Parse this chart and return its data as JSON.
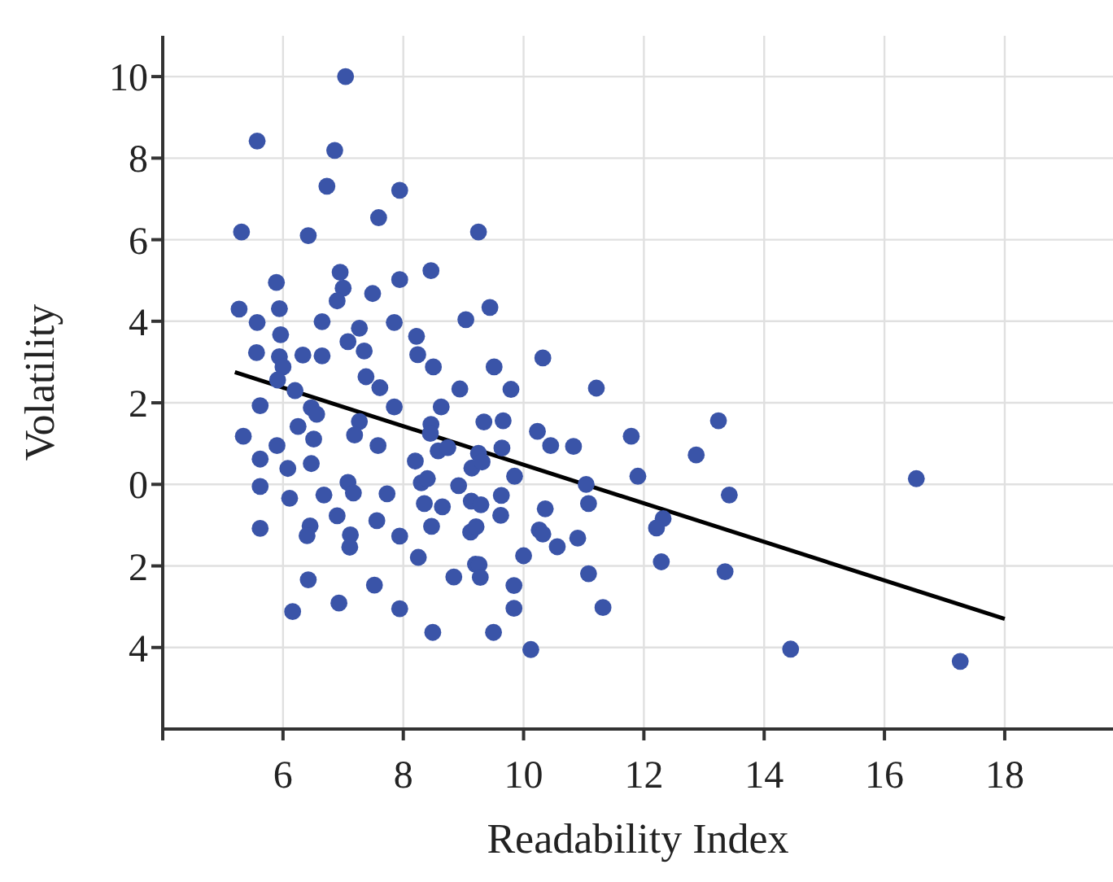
{
  "chart_data": {
    "type": "scatter",
    "xlabel": "Readability Index",
    "ylabel": "Volatility",
    "xlim": [
      4,
      19.8
    ],
    "ylim": [
      -6,
      11
    ],
    "xticks": [
      {
        "value": 4,
        "label": null
      },
      6,
      8,
      10,
      12,
      14,
      16,
      18
    ],
    "yticks": [
      10,
      8,
      6,
      4,
      2,
      0,
      {
        "value": -2,
        "label": "2"
      },
      {
        "value": -4,
        "label": "4"
      }
    ],
    "grid": true,
    "legend": false,
    "series": [
      {
        "marker": "circle",
        "color": "#3a54a8",
        "x": [
          7.04,
          5.57,
          6.86,
          6.73,
          7.94,
          7.59,
          5.31,
          6.42,
          9.25,
          6.95,
          7.0,
          6.9,
          7.49,
          5.89,
          7.94,
          8.46,
          5.27,
          5.94,
          5.57,
          6.65,
          7.85,
          9.04,
          5.96,
          7.27,
          7.08,
          8.22,
          5.56,
          5.94,
          6.33,
          6.65,
          7.35,
          8.24,
          6.0,
          8.5,
          5.91,
          7.38,
          7.61,
          8.94,
          6.2,
          9.44,
          9.51,
          10.32,
          9.79,
          11.21,
          5.62,
          6.47,
          6.56,
          7.85,
          8.63,
          5.34,
          6.25,
          7.27,
          7.19,
          6.51,
          7.58,
          5.9,
          8.46,
          8.45,
          8.58,
          8.74,
          5.62,
          6.08,
          6.47,
          8.2,
          9.14,
          8.3,
          8.4,
          8.92,
          5.62,
          6.68,
          7.08,
          7.17,
          7.73,
          6.11,
          9.13,
          8.35,
          8.65,
          6.9,
          7.56,
          5.62,
          6.45,
          6.4,
          8.47,
          7.12,
          7.94,
          7.11,
          9.12,
          8.25,
          8.84,
          6.42,
          7.52,
          9.2,
          6.16,
          6.93,
          7.94,
          8.49,
          9.34,
          9.66,
          10.23,
          10.45,
          10.83,
          11.79,
          13.24,
          12.87,
          9.64,
          9.25,
          9.31,
          9.85,
          11.9,
          11.04,
          13.42,
          9.29,
          9.63,
          9.62,
          11.08,
          10.36,
          9.21,
          10.26,
          10.32,
          10.9,
          10.56,
          10.0,
          12.32,
          12.21,
          9.26,
          9.28,
          12.29,
          11.08,
          13.35,
          9.84,
          9.84,
          11.32,
          9.5,
          10.12,
          16.53,
          14.44,
          17.26
        ],
        "values": [
          10.0,
          8.42,
          8.19,
          7.31,
          7.21,
          6.54,
          6.19,
          6.1,
          6.19,
          5.2,
          4.81,
          4.5,
          4.68,
          4.95,
          5.02,
          5.24,
          4.3,
          4.31,
          3.97,
          3.99,
          3.97,
          4.04,
          3.67,
          3.83,
          3.5,
          3.63,
          3.23,
          3.13,
          3.17,
          3.15,
          3.27,
          3.18,
          2.88,
          2.88,
          2.56,
          2.64,
          2.37,
          2.34,
          2.3,
          4.34,
          2.88,
          3.1,
          2.33,
          2.36,
          1.93,
          1.88,
          1.72,
          1.9,
          1.9,
          1.18,
          1.42,
          1.54,
          1.21,
          1.11,
          0.95,
          0.95,
          1.47,
          1.25,
          0.82,
          0.9,
          0.62,
          0.39,
          0.51,
          0.57,
          0.4,
          0.04,
          0.14,
          -0.03,
          -0.05,
          -0.26,
          0.05,
          -0.21,
          -0.23,
          -0.34,
          -0.41,
          -0.47,
          -0.55,
          -0.77,
          -0.89,
          -1.08,
          -1.02,
          -1.26,
          -1.03,
          -1.24,
          -1.27,
          -1.54,
          -1.17,
          -1.79,
          -2.27,
          -2.34,
          -2.47,
          -1.96,
          -3.12,
          -2.91,
          -3.05,
          -3.63,
          1.53,
          1.56,
          1.3,
          0.95,
          0.93,
          1.18,
          1.56,
          0.72,
          0.89,
          0.76,
          0.55,
          0.2,
          0.2,
          0.0,
          -0.26,
          -0.5,
          -0.27,
          -0.76,
          -0.47,
          -0.6,
          -1.04,
          -1.12,
          -1.22,
          -1.32,
          -1.53,
          -1.75,
          -0.84,
          -1.07,
          -1.97,
          -2.28,
          -1.9,
          -2.19,
          -2.14,
          -2.48,
          -3.04,
          -3.02,
          -3.63,
          -4.05,
          0.14,
          -4.04,
          -4.34
        ]
      },
      {
        "type": "line",
        "marker": "none",
        "color": "#000000",
        "x": [
          5.2,
          18
        ],
        "values": [
          2.75,
          -3.3
        ]
      }
    ]
  }
}
